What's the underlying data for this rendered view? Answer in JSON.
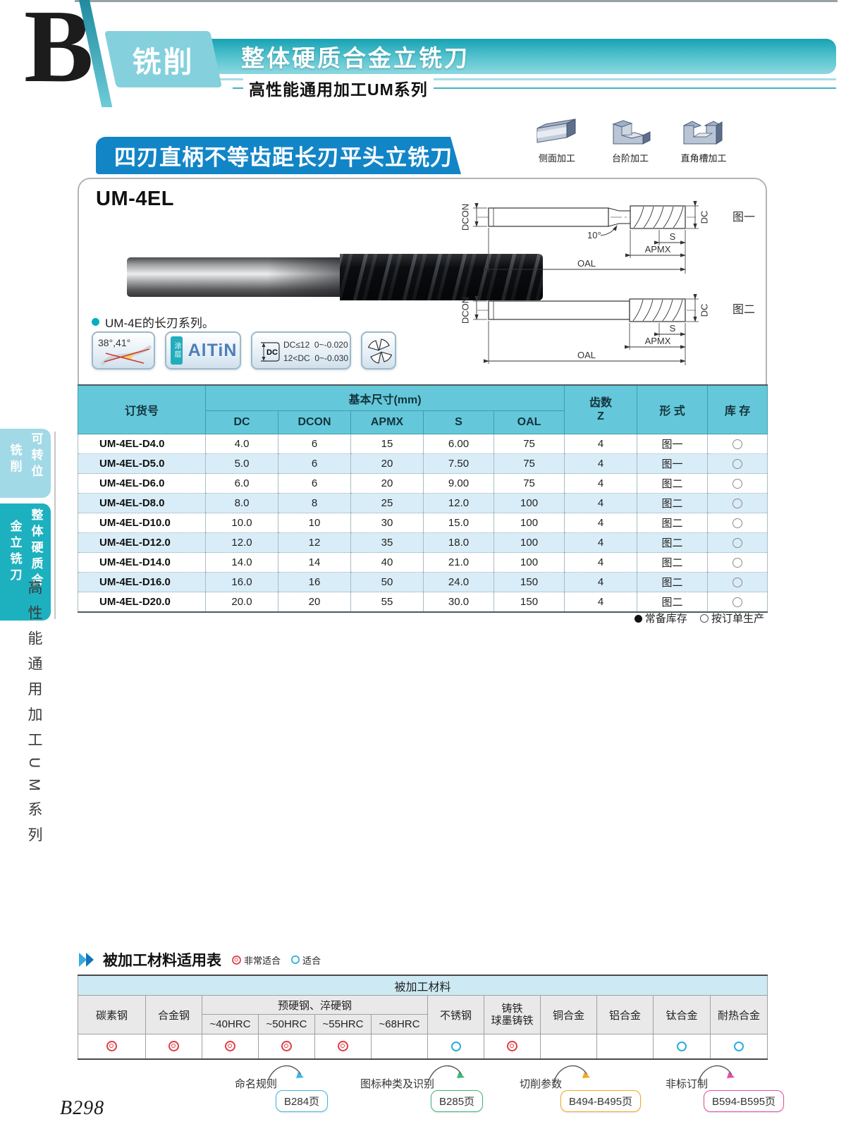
{
  "header": {
    "letter": "B",
    "category": "铣削",
    "banner_title": "整体硬质合金立铣刀",
    "series": "高性能通用加工UM系列"
  },
  "section": {
    "title": "四刃直柄不等齿距长刃平头立铣刀",
    "machining_types": [
      {
        "label": "侧面加工"
      },
      {
        "label": "台阶加工"
      },
      {
        "label": "直角槽加工"
      }
    ]
  },
  "product": {
    "model": "UM-4EL",
    "note": "UM-4E的长刃系列。",
    "badges": {
      "helix_angles": "38°,41°",
      "coating_prefix": "涂层",
      "coating_name": "AlTiN",
      "tol_dc_label": "DC",
      "tol_line1": "DC≤12  0~-0.020",
      "tol_line2": "12<DC  0~-0.030"
    },
    "diagrams": [
      {
        "label": "图一",
        "angle": "10°",
        "dcon": "DCON",
        "dc": "DC",
        "s": "S",
        "apmx": "APMX",
        "oal": "OAL"
      },
      {
        "label": "图二",
        "dcon": "DCON",
        "dc": "DC",
        "s": "S",
        "apmx": "APMX",
        "oal": "OAL"
      }
    ]
  },
  "order_table": {
    "col_order_no": "订货号",
    "col_group": "基本尺寸(mm)",
    "col_dims": [
      "DC",
      "DCON",
      "APMX",
      "S",
      "OAL"
    ],
    "col_teeth_top": "齿数",
    "col_teeth_bottom": "Z",
    "col_form": "形 式",
    "col_stock": "库 存",
    "rows": [
      {
        "order_no": "UM-4EL-D4.0",
        "dc": "4.0",
        "dcon": "6",
        "apmx": "15",
        "s": "6.00",
        "oal": "75",
        "z": "4",
        "form": "图一",
        "stock": "order"
      },
      {
        "order_no": "UM-4EL-D5.0",
        "dc": "5.0",
        "dcon": "6",
        "apmx": "20",
        "s": "7.50",
        "oal": "75",
        "z": "4",
        "form": "图一",
        "stock": "order"
      },
      {
        "order_no": "UM-4EL-D6.0",
        "dc": "6.0",
        "dcon": "6",
        "apmx": "20",
        "s": "9.00",
        "oal": "75",
        "z": "4",
        "form": "图二",
        "stock": "order"
      },
      {
        "order_no": "UM-4EL-D8.0",
        "dc": "8.0",
        "dcon": "8",
        "apmx": "25",
        "s": "12.0",
        "oal": "100",
        "z": "4",
        "form": "图二",
        "stock": "order"
      },
      {
        "order_no": "UM-4EL-D10.0",
        "dc": "10.0",
        "dcon": "10",
        "apmx": "30",
        "s": "15.0",
        "oal": "100",
        "z": "4",
        "form": "图二",
        "stock": "order"
      },
      {
        "order_no": "UM-4EL-D12.0",
        "dc": "12.0",
        "dcon": "12",
        "apmx": "35",
        "s": "18.0",
        "oal": "100",
        "z": "4",
        "form": "图二",
        "stock": "order"
      },
      {
        "order_no": "UM-4EL-D14.0",
        "dc": "14.0",
        "dcon": "14",
        "apmx": "40",
        "s": "21.0",
        "oal": "100",
        "z": "4",
        "form": "图二",
        "stock": "order"
      },
      {
        "order_no": "UM-4EL-D16.0",
        "dc": "16.0",
        "dcon": "16",
        "apmx": "50",
        "s": "24.0",
        "oal": "150",
        "z": "4",
        "form": "图二",
        "stock": "order"
      },
      {
        "order_no": "UM-4EL-D20.0",
        "dc": "20.0",
        "dcon": "20",
        "apmx": "55",
        "s": "30.0",
        "oal": "150",
        "z": "4",
        "form": "图二",
        "stock": "order"
      }
    ],
    "legend": [
      {
        "symbol": "filled",
        "label": "常备库存"
      },
      {
        "symbol": "hollow",
        "label": "按订单生产"
      }
    ]
  },
  "sidebar": {
    "tab1_col1": "可转位",
    "tab1_col2": "铣削",
    "tab2_col1": "整体硬质合",
    "tab2_col2": "金立铣刀",
    "caption": "高性能通用加工UM系列"
  },
  "materials": {
    "section_title": "被加工材料适用表",
    "legend": [
      {
        "rating": "best",
        "label": "非常适合"
      },
      {
        "rating": "good",
        "label": "适合"
      }
    ],
    "table_title": "被加工材料",
    "simple_cols_left": [
      "碳素钢",
      "合金钢"
    ],
    "group_label": "预硬钢、淬硬钢",
    "hrc_labels": [
      "~40HRC",
      "~50HRC",
      "~55HRC",
      "~68HRC"
    ],
    "cols_right": [
      "不锈钢",
      "铸铁\n球墨铸铁",
      "铜合金",
      "铝合金",
      "钛合金",
      "耐热合金"
    ],
    "ratings": [
      "best",
      "best",
      "best",
      "best",
      "best",
      "",
      "good",
      "best",
      "",
      "",
      "good",
      "good"
    ]
  },
  "footer": {
    "links": [
      {
        "label": "命名规则",
        "page": "B284页",
        "color": "#3db7e4"
      },
      {
        "label": "图标种类及识别",
        "page": "B285页",
        "color": "#3cb878"
      },
      {
        "label": "切削参数",
        "page": "B494-B495页",
        "color": "#f5a623"
      },
      {
        "label": "非标订制",
        "page": "B594-B595页",
        "color": "#e44fa3"
      }
    ],
    "page_number": "B298"
  }
}
